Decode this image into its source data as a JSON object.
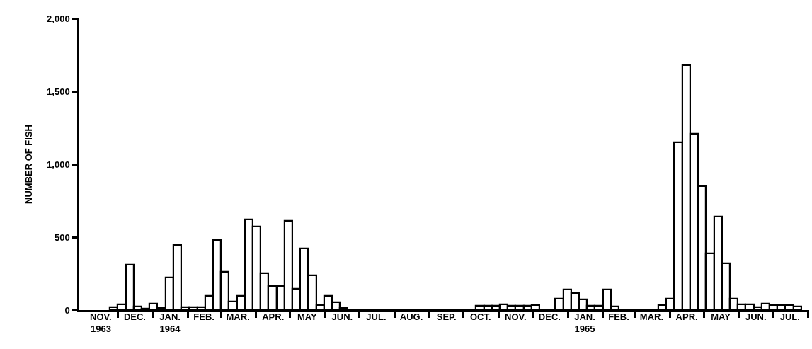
{
  "chart_data": {
    "type": "histogram",
    "ylabel": "NUMBER OF FISH",
    "bins": [
      "1963-11-24",
      "1963-12-01",
      "1963-12-08",
      "1963-12-15",
      "1963-12-22",
      "1963-12-29",
      "1964-01-05",
      "1964-01-12",
      "1964-01-19",
      "1964-01-26",
      "1964-02-02",
      "1964-02-09",
      "1964-02-16",
      "1964-02-23",
      "1964-03-01",
      "1964-03-08",
      "1964-03-15",
      "1964-03-22",
      "1964-03-29",
      "1964-04-05",
      "1964-04-12",
      "1964-04-19",
      "1964-04-26",
      "1964-05-03",
      "1964-05-10",
      "1964-05-17",
      "1964-05-24",
      "1964-05-31",
      "1964-06-07",
      "1964-06-14",
      "1964-06-21",
      "1964-10-12",
      "1964-10-19",
      "1964-10-26",
      "1964-11-02",
      "1964-11-09",
      "1964-11-16",
      "1964-11-23",
      "1964-11-30",
      "1964-12-07",
      "1964-12-21",
      "1964-12-28",
      "1965-01-04",
      "1965-01-11",
      "1965-01-18",
      "1965-01-25",
      "1965-02-01",
      "1965-02-08",
      "1965-02-15",
      "1965-03-22",
      "1965-03-29",
      "1965-04-05",
      "1965-04-12",
      "1965-04-19",
      "1965-04-26",
      "1965-05-03",
      "1965-05-10",
      "1965-05-17",
      "1965-05-24",
      "1965-05-31",
      "1965-06-07",
      "1965-06-14",
      "1965-06-21",
      "1965-06-28",
      "1965-07-05",
      "1965-07-12",
      "1965-07-19",
      "1965-07-26"
    ],
    "values": [
      19,
      37,
      311,
      24,
      11,
      45,
      15,
      222,
      448,
      21,
      21,
      21,
      97,
      480,
      262,
      60,
      97,
      620,
      574,
      251,
      165,
      165,
      613,
      146,
      421,
      238,
      32,
      97,
      53,
      16,
      0,
      29,
      29,
      29,
      37,
      29,
      29,
      29,
      32,
      0,
      76,
      141,
      115,
      71,
      29,
      29,
      139,
      24,
      0,
      34,
      76,
      1150,
      1680,
      1210,
      850,
      390,
      640,
      320,
      76,
      37,
      37,
      20,
      42,
      34,
      34,
      34,
      22
    ],
    "color": "#000000",
    "xlim": [
      "1963-10-28",
      "1965-08-02"
    ],
    "xticks": [
      {
        "value": "1963-12-01",
        "label": null
      },
      {
        "value": "1964-01-01",
        "label": null
      },
      {
        "value": "1964-02-01",
        "label": null
      },
      {
        "value": "1964-03-01",
        "label": null
      },
      {
        "value": "1964-04-01",
        "label": null
      },
      {
        "value": "1964-05-01",
        "label": null
      },
      {
        "value": "1964-06-01",
        "label": null
      },
      {
        "value": "1964-07-01",
        "label": null
      },
      {
        "value": "1964-08-01",
        "label": null
      },
      {
        "value": "1964-09-01",
        "label": null
      },
      {
        "value": "1964-10-01",
        "label": null
      },
      {
        "value": "1964-11-01",
        "label": null
      },
      {
        "value": "1964-12-01",
        "label": null
      },
      {
        "value": "1965-01-01",
        "label": null
      },
      {
        "value": "1965-02-01",
        "label": null
      },
      {
        "value": "1965-03-01",
        "label": null
      },
      {
        "value": "1965-04-01",
        "label": null
      },
      {
        "value": "1965-05-01",
        "label": null
      },
      {
        "value": "1965-06-01",
        "label": null
      },
      {
        "value": "1965-07-01",
        "label": null
      },
      {
        "value": "1965-08-01",
        "label": null
      },
      {
        "value": "1963-11-16",
        "label": "NOV.\n1963"
      },
      {
        "value": "1963-12-16",
        "label": "DEC."
      },
      {
        "value": "1964-01-16",
        "label": "JAN.\n1964"
      },
      {
        "value": "1964-02-15",
        "label": "FEB."
      },
      {
        "value": "1964-03-16",
        "label": "MAR."
      },
      {
        "value": "1964-04-16",
        "label": "APR."
      },
      {
        "value": "1964-05-16",
        "label": "MAY"
      },
      {
        "value": "1964-06-16",
        "label": "JUN."
      },
      {
        "value": "1964-07-16",
        "label": "JUL."
      },
      {
        "value": "1964-08-16",
        "label": "AUG."
      },
      {
        "value": "1964-09-16",
        "label": "SEP."
      },
      {
        "value": "1964-10-16",
        "label": "OCT."
      },
      {
        "value": "1964-11-16",
        "label": "NOV."
      },
      {
        "value": "1964-12-16",
        "label": "DEC."
      },
      {
        "value": "1965-01-16",
        "label": "JAN.\n1965"
      },
      {
        "value": "1965-02-15",
        "label": "FEB."
      },
      {
        "value": "1965-03-16",
        "label": "MAR."
      },
      {
        "value": "1965-04-16",
        "label": "APR."
      },
      {
        "value": "1965-05-16",
        "label": "MAY"
      },
      {
        "value": "1965-06-16",
        "label": "JUN."
      },
      {
        "value": "1965-07-16",
        "label": "JUL."
      }
    ],
    "ylim": [
      0,
      2000
    ],
    "yticks": [
      0,
      {
        "value": 500,
        "label": "500"
      },
      {
        "value": 1000,
        "label": "1,000"
      },
      {
        "value": 1500,
        "label": "1,500"
      },
      {
        "value": 2000,
        "label": "2,000"
      }
    ]
  }
}
